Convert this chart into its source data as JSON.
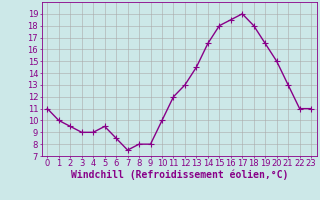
{
  "x": [
    0,
    1,
    2,
    3,
    4,
    5,
    6,
    7,
    8,
    9,
    10,
    11,
    12,
    13,
    14,
    15,
    16,
    17,
    18,
    19,
    20,
    21,
    22,
    23
  ],
  "y": [
    11,
    10,
    9.5,
    9,
    9,
    9.5,
    8.5,
    7.5,
    8,
    8,
    10,
    12,
    13,
    14.5,
    16.5,
    18,
    18.5,
    19,
    18,
    16.5,
    15,
    13,
    11,
    11
  ],
  "line_color": "#880088",
  "marker": "+",
  "marker_size": 4,
  "linewidth": 1.0,
  "background_color": "#cce8e8",
  "grid_color": "#aaaaaa",
  "xlabel": "Windchill (Refroidissement éolien,°C)",
  "ylim": [
    7,
    20
  ],
  "xlim": [
    -0.5,
    23.5
  ],
  "yticks": [
    7,
    8,
    9,
    10,
    11,
    12,
    13,
    14,
    15,
    16,
    17,
    18,
    19
  ],
  "xtick_labels": [
    "0",
    "1",
    "2",
    "3",
    "4",
    "5",
    "6",
    "7",
    "8",
    "9",
    "10",
    "11",
    "12",
    "13",
    "14",
    "15",
    "16",
    "17",
    "18",
    "19",
    "20",
    "21",
    "22",
    "23"
  ],
  "tick_fontsize": 6,
  "xlabel_fontsize": 7,
  "spine_color": "#880088"
}
